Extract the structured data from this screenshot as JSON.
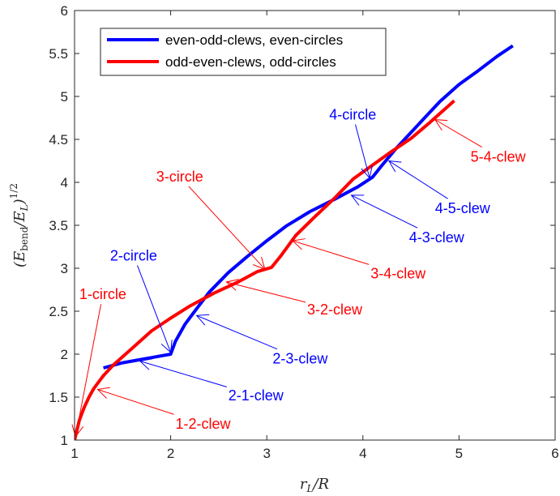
{
  "chart_data": {
    "type": "line",
    "xlabel": "r_L/R",
    "ylabel": "(E_bend/E_L)^{1/2}",
    "xlim": [
      1,
      6
    ],
    "ylim": [
      1,
      6
    ],
    "x_ticks": [
      "1",
      "2",
      "3",
      "4",
      "5",
      "6"
    ],
    "y_ticks": [
      "1",
      "1.5",
      "2",
      "2.5",
      "3",
      "3.5",
      "4",
      "4.5",
      "5",
      "5.5",
      "6"
    ],
    "grid": false,
    "legend_position": "top-left",
    "series": [
      {
        "name": "even-odd-clews, even-circles",
        "color": "#0000ff",
        "x": [
          1.3,
          1.5,
          1.7,
          1.85,
          2.0,
          2.05,
          2.15,
          2.25,
          2.4,
          2.6,
          2.8,
          3.0,
          3.2,
          3.45,
          3.7,
          3.95,
          4.1,
          4.2,
          4.35,
          4.5,
          4.65,
          4.8,
          5.0,
          5.2,
          5.4,
          5.56
        ],
        "y": [
          1.84,
          1.9,
          1.94,
          1.97,
          2.0,
          2.15,
          2.35,
          2.5,
          2.72,
          2.95,
          3.14,
          3.32,
          3.49,
          3.66,
          3.8,
          3.95,
          4.06,
          4.2,
          4.4,
          4.58,
          4.76,
          4.94,
          5.14,
          5.3,
          5.47,
          5.59
        ]
      },
      {
        "name": "odd-even-clews, odd-circles",
        "color": "#ff0000",
        "x": [
          1.0,
          1.05,
          1.1,
          1.15,
          1.2,
          1.3,
          1.4,
          1.6,
          1.8,
          2.0,
          2.2,
          2.45,
          2.7,
          2.9,
          3.05,
          3.15,
          3.3,
          3.5,
          3.7,
          3.9,
          4.1,
          4.3,
          4.5,
          4.7,
          4.95
        ],
        "y": [
          1.0,
          1.23,
          1.38,
          1.5,
          1.6,
          1.75,
          1.87,
          2.07,
          2.27,
          2.42,
          2.56,
          2.71,
          2.84,
          2.96,
          3.01,
          3.15,
          3.38,
          3.6,
          3.81,
          4.04,
          4.2,
          4.36,
          4.51,
          4.7,
          4.95
        ]
      }
    ],
    "annotations": [
      {
        "label": "1-circle",
        "color": "#ff0000",
        "text_x": 1.05,
        "text_y": 2.64,
        "arrow_x": 1.01,
        "arrow_y": 1.04
      },
      {
        "label": "1-2-clew",
        "color": "#ff0000",
        "text_x": 2.05,
        "text_y": 1.13,
        "arrow_x": 1.24,
        "arrow_y": 1.59
      },
      {
        "label": "2-circle",
        "color": "#0000ff",
        "text_x": 1.37,
        "text_y": 3.09,
        "arrow_x": 2.0,
        "arrow_y": 2.02
      },
      {
        "label": "2-1-clew",
        "color": "#0000ff",
        "text_x": 2.6,
        "text_y": 1.46,
        "arrow_x": 1.68,
        "arrow_y": 1.92
      },
      {
        "label": "2-3-clew",
        "color": "#0000ff",
        "text_x": 3.06,
        "text_y": 1.89,
        "arrow_x": 2.27,
        "arrow_y": 2.45
      },
      {
        "label": "3-circle",
        "color": "#ff0000",
        "text_x": 1.85,
        "text_y": 4.01,
        "arrow_x": 2.98,
        "arrow_y": 2.99
      },
      {
        "label": "3-2-clew",
        "color": "#ff0000",
        "text_x": 3.42,
        "text_y": 2.46,
        "arrow_x": 2.58,
        "arrow_y": 2.84
      },
      {
        "label": "3-4-clew",
        "color": "#ff0000",
        "text_x": 4.08,
        "text_y": 2.88,
        "arrow_x": 3.27,
        "arrow_y": 3.32
      },
      {
        "label": "4-circle",
        "color": "#0000ff",
        "text_x": 3.65,
        "text_y": 4.73,
        "arrow_x": 4.07,
        "arrow_y": 4.05
      },
      {
        "label": "4-3-clew",
        "color": "#0000ff",
        "text_x": 4.48,
        "text_y": 3.3,
        "arrow_x": 3.88,
        "arrow_y": 3.85
      },
      {
        "label": "4-5-clew",
        "color": "#0000ff",
        "text_x": 4.75,
        "text_y": 3.64,
        "arrow_x": 4.27,
        "arrow_y": 4.25
      },
      {
        "label": "5-4-clew",
        "color": "#ff0000",
        "text_x": 5.12,
        "text_y": 4.24,
        "arrow_x": 4.75,
        "arrow_y": 4.73
      }
    ]
  }
}
